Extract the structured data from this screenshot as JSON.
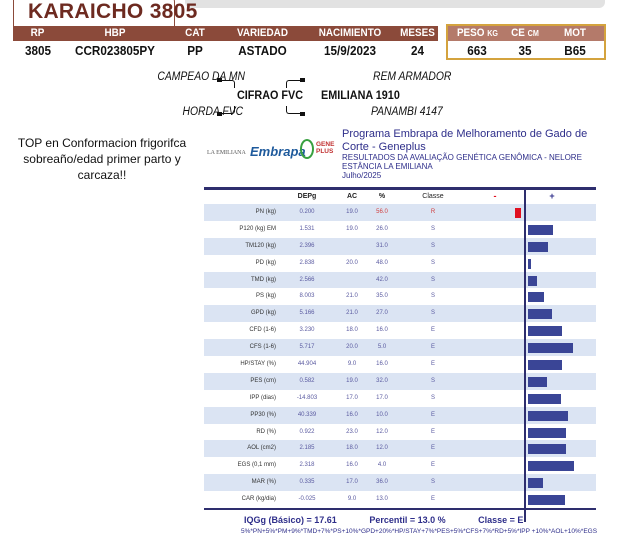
{
  "animal": {
    "name": "KARAICHO 3805"
  },
  "header": {
    "columns": [
      "RP",
      "HBP",
      "CAT",
      "VARIEDAD",
      "NACIMIENTO",
      "MESES"
    ],
    "values": [
      "3805",
      "CCR023805PY",
      "PP",
      "ASTADO",
      "15/9/2023",
      "24"
    ],
    "measures": [
      {
        "label": "PESO",
        "unit": "KG",
        "value": "663"
      },
      {
        "label": "CE",
        "unit": "CM",
        "value": "35"
      },
      {
        "label": "MOT",
        "unit": "",
        "value": "B65"
      }
    ]
  },
  "pedigree": {
    "sire": "CIFRAO FVC",
    "sire_sire": "CAMPEAO DA MN",
    "sire_dam": "HORDA FVC",
    "dam": "EMILIANA 1910",
    "dam_sire": "REM ARMADOR",
    "dam_dam": "PANAMBI 4147"
  },
  "note": "TOP en Conformacion frigorifca sobreaño/edad primer parto y carcaza!!",
  "report": {
    "logos": [
      "LA EMILIANA",
      "Embrapa",
      "GENE PLUS"
    ],
    "program": "Programa Embrapa de Melhoramento de Gado de Corte - Geneplus",
    "subtitle": "RESULTADOS DA AVALIAÇÃO GENÉTICA GENÔMICA - NELORE",
    "farm": "ESTÂNCIA LA EMILIANA",
    "date": "Julho/2025",
    "columns": [
      "DEPg",
      "AC",
      "%",
      "Classe",
      "-",
      "+"
    ],
    "colors": {
      "positive": "#3a4596",
      "negative": "#e01020",
      "highlight": "#d04040"
    },
    "rows": [
      {
        "trait": "PN (kg)",
        "depg": "0.200",
        "ac": "19.0",
        "pct": "56.0",
        "classe": "R",
        "bar": -0.13,
        "highlight": true
      },
      {
        "trait": "P120 (kg) EM",
        "depg": "1.531",
        "ac": "19.0",
        "pct": "26.0",
        "classe": "S",
        "bar": 0.54
      },
      {
        "trait": "TM120 (kg)",
        "depg": "2.396",
        "ac": "",
        "pct": "31.0",
        "classe": "S",
        "bar": 0.43
      },
      {
        "trait": "PD (kg)",
        "depg": "2.838",
        "ac": "20.0",
        "pct": "48.0",
        "classe": "S",
        "bar": 0.07
      },
      {
        "trait": "TMD (kg)",
        "depg": "2.566",
        "ac": "",
        "pct": "42.0",
        "classe": "S",
        "bar": 0.2
      },
      {
        "trait": "PS (kg)",
        "depg": "8.003",
        "ac": "21.0",
        "pct": "35.0",
        "classe": "S",
        "bar": 0.35
      },
      {
        "trait": "GPD (kg)",
        "depg": "5.166",
        "ac": "21.0",
        "pct": "27.0",
        "classe": "S",
        "bar": 0.52
      },
      {
        "trait": "CFD (1-6)",
        "depg": "3.230",
        "ac": "18.0",
        "pct": "16.0",
        "classe": "E",
        "bar": 0.74
      },
      {
        "trait": "CFS (1-6)",
        "depg": "5.717",
        "ac": "20.0",
        "pct": "5.0",
        "classe": "E",
        "bar": 0.98
      },
      {
        "trait": "HP/STAY (%)",
        "depg": "44.904",
        "ac": "9.0",
        "pct": "16.0",
        "classe": "E",
        "bar": 0.74
      },
      {
        "trait": "PES (cm)",
        "depg": "0.582",
        "ac": "19.0",
        "pct": "32.0",
        "classe": "S",
        "bar": 0.41
      },
      {
        "trait": "IPP (dias)",
        "depg": "-14.803",
        "ac": "17.0",
        "pct": "17.0",
        "classe": "S",
        "bar": 0.72
      },
      {
        "trait": "PP30 (%)",
        "depg": "40.339",
        "ac": "16.0",
        "pct": "10.0",
        "classe": "E",
        "bar": 0.87
      },
      {
        "trait": "RD (%)",
        "depg": "0.922",
        "ac": "23.0",
        "pct": "12.0",
        "classe": "E",
        "bar": 0.83
      },
      {
        "trait": "AOL (cm2)",
        "depg": "2.185",
        "ac": "18.0",
        "pct": "12.0",
        "classe": "E",
        "bar": 0.83
      },
      {
        "trait": "EGS (0,1 mm)",
        "depg": "2.318",
        "ac": "16.0",
        "pct": "4.0",
        "classe": "E",
        "bar": 1.0
      },
      {
        "trait": "MAR (%)",
        "depg": "0.335",
        "ac": "17.0",
        "pct": "36.0",
        "classe": "S",
        "bar": 0.33
      },
      {
        "trait": "CAR (kg/dia)",
        "depg": "-0.025",
        "ac": "9.0",
        "pct": "13.0",
        "classe": "E",
        "bar": 0.8
      }
    ],
    "iqgg": "IQGg (Básico) = 17.61",
    "percentil": "Percentil = 13.0 %",
    "classe": "Classe = E",
    "formula": "5%*PN+5%*PM+9%*TMD+7%*PS+10%*GPD+20%*HP/STAY+7%*PES+5%*CFS+7%*RD+5%*IPP +10%*AOL+10%*EGS"
  }
}
